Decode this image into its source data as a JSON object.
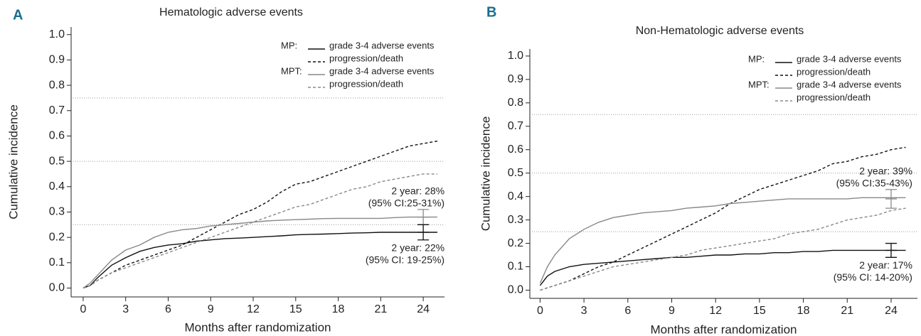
{
  "chart_data": [
    {
      "type": "line",
      "panel": "A",
      "title": "Hematologic adverse events",
      "xlabel": "Months after randomization",
      "ylabel": "Cumulative incidence",
      "x": [
        0,
        0.5,
        1,
        2,
        3,
        4,
        5,
        6,
        7,
        8,
        9,
        10,
        11,
        12,
        13,
        14,
        15,
        16,
        17,
        18,
        19,
        20,
        21,
        22,
        23,
        24,
        25
      ],
      "legend": "upper right",
      "legend_groups": [
        "MP:",
        "MPT:"
      ],
      "series": [
        {
          "name": "grade 3-4 adverse events",
          "color": "#111111",
          "linestyle": "solid",
          "values": [
            0,
            0.01,
            0.04,
            0.09,
            0.12,
            0.145,
            0.16,
            0.17,
            0.175,
            0.185,
            0.19,
            0.195,
            0.197,
            0.2,
            0.203,
            0.206,
            0.21,
            0.212,
            0.213,
            0.215,
            0.217,
            0.218,
            0.22,
            0.22,
            0.22,
            0.22,
            0.22
          ]
        },
        {
          "name": "progression/death",
          "color": "#111111",
          "linestyle": "dashed",
          "values": [
            0,
            0.01,
            0.03,
            0.06,
            0.09,
            0.11,
            0.13,
            0.15,
            0.17,
            0.2,
            0.23,
            0.26,
            0.29,
            0.31,
            0.34,
            0.38,
            0.41,
            0.42,
            0.44,
            0.46,
            0.48,
            0.5,
            0.52,
            0.54,
            0.56,
            0.57,
            0.58
          ]
        },
        {
          "name": "grade 3-4 adverse events",
          "color": "#888888",
          "linestyle": "solid",
          "values": [
            0,
            0.02,
            0.05,
            0.11,
            0.15,
            0.17,
            0.2,
            0.22,
            0.23,
            0.235,
            0.245,
            0.25,
            0.255,
            0.26,
            0.265,
            0.268,
            0.27,
            0.272,
            0.274,
            0.275,
            0.275,
            0.275,
            0.275,
            0.278,
            0.28,
            0.28,
            0.28
          ]
        },
        {
          "name": "progression/death",
          "color": "#888888",
          "linestyle": "dashed",
          "values": [
            0,
            0.01,
            0.03,
            0.06,
            0.08,
            0.1,
            0.12,
            0.14,
            0.16,
            0.18,
            0.2,
            0.22,
            0.24,
            0.26,
            0.28,
            0.3,
            0.32,
            0.33,
            0.35,
            0.37,
            0.39,
            0.4,
            0.42,
            0.43,
            0.44,
            0.45,
            0.45
          ]
        }
      ],
      "error_bars": [
        {
          "color": "#888888",
          "x": 24,
          "value": 0.28,
          "low": 0.25,
          "high": 0.31,
          "placement": "above",
          "labels": [
            "2 year: 28%",
            "(95% CI:25-31%)"
          ]
        },
        {
          "color": "#111111",
          "x": 24,
          "value": 0.22,
          "low": 0.19,
          "high": 0.25,
          "placement": "below",
          "labels": [
            "2 year: 22%",
            "(95% CI: 19-25%)"
          ]
        }
      ],
      "hlines": [
        0.25,
        0.5,
        0.75
      ],
      "xlim": [
        -0.85,
        25.5
      ],
      "xticks": [
        0,
        3,
        6,
        9,
        12,
        15,
        18,
        21,
        24
      ],
      "ylim": [
        -0.035,
        1.03
      ],
      "yticks": [
        {
          "value": 0,
          "label": "0.0"
        },
        0.1,
        0.2,
        0.3,
        0.4,
        0.5,
        0.6,
        0.7,
        0.8,
        0.9,
        {
          "value": 1,
          "label": "1.0"
        }
      ]
    },
    {
      "type": "line",
      "panel": "B",
      "title": "Non-Hematologic adverse events",
      "xlabel": "Months after randomization",
      "ylabel": "Cumulative incidence",
      "x": [
        0,
        0.5,
        1,
        2,
        3,
        4,
        5,
        6,
        7,
        8,
        9,
        10,
        11,
        12,
        13,
        14,
        15,
        16,
        17,
        18,
        19,
        20,
        21,
        22,
        23,
        24,
        25
      ],
      "legend": "upper right",
      "legend_groups": [
        "MP:",
        "MPT:"
      ],
      "series": [
        {
          "name": "grade 3-4 adverse events",
          "color": "#111111",
          "linestyle": "solid",
          "values": [
            0.02,
            0.06,
            0.08,
            0.1,
            0.11,
            0.115,
            0.12,
            0.125,
            0.13,
            0.135,
            0.14,
            0.14,
            0.145,
            0.15,
            0.15,
            0.155,
            0.155,
            0.16,
            0.16,
            0.165,
            0.165,
            0.17,
            0.17,
            0.17,
            0.17,
            0.17,
            0.17
          ]
        },
        {
          "name": "progression/death",
          "color": "#111111",
          "linestyle": "dashed",
          "values": [
            0,
            0.01,
            0.02,
            0.04,
            0.07,
            0.1,
            0.12,
            0.15,
            0.18,
            0.21,
            0.24,
            0.27,
            0.3,
            0.33,
            0.37,
            0.4,
            0.43,
            0.45,
            0.47,
            0.49,
            0.51,
            0.54,
            0.55,
            0.57,
            0.58,
            0.6,
            0.61
          ]
        },
        {
          "name": "grade 3-4 adverse events",
          "color": "#888888",
          "linestyle": "solid",
          "values": [
            0.03,
            0.1,
            0.15,
            0.22,
            0.26,
            0.29,
            0.31,
            0.32,
            0.33,
            0.335,
            0.34,
            0.35,
            0.355,
            0.36,
            0.37,
            0.375,
            0.38,
            0.385,
            0.39,
            0.39,
            0.39,
            0.39,
            0.39,
            0.395,
            0.395,
            0.395,
            0.395
          ]
        },
        {
          "name": "progression/death",
          "color": "#888888",
          "linestyle": "dashed",
          "values": [
            0,
            0.01,
            0.02,
            0.04,
            0.06,
            0.08,
            0.1,
            0.11,
            0.12,
            0.13,
            0.14,
            0.15,
            0.17,
            0.18,
            0.19,
            0.2,
            0.21,
            0.22,
            0.24,
            0.25,
            0.26,
            0.28,
            0.3,
            0.31,
            0.32,
            0.34,
            0.35
          ]
        }
      ],
      "error_bars": [
        {
          "color": "#888888",
          "x": 24,
          "value": 0.39,
          "low": 0.35,
          "high": 0.43,
          "placement": "above",
          "labels": [
            "2 year: 39%",
            "(95% CI:35-43%)"
          ]
        },
        {
          "color": "#111111",
          "x": 24,
          "value": 0.17,
          "low": 0.14,
          "high": 0.2,
          "placement": "below",
          "labels": [
            "2 year: 17%",
            "(95% CI: 14-20%)"
          ]
        }
      ],
      "hlines": [
        0.25,
        0.5,
        0.75
      ],
      "xlim": [
        -0.7,
        25.8
      ],
      "xticks": [
        0,
        3,
        6,
        9,
        12,
        15,
        18,
        21,
        24
      ],
      "ylim": [
        -0.035,
        1.03
      ],
      "yticks": [
        {
          "value": 0,
          "label": "0.0"
        },
        0.1,
        0.2,
        0.3,
        0.4,
        0.5,
        0.6,
        0.7,
        0.8,
        0.9,
        {
          "value": 1,
          "label": "1.0"
        }
      ]
    }
  ]
}
